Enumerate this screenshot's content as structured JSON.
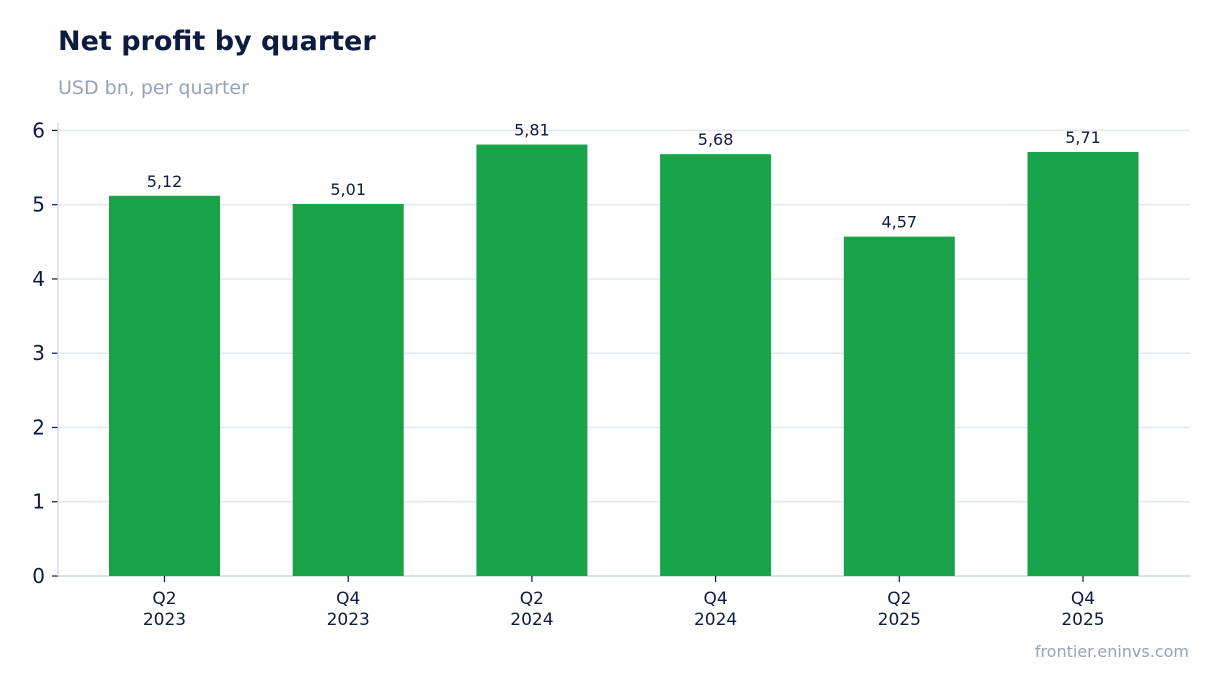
{
  "header": {
    "title": "Net profit by quarter",
    "subtitle": "USD bn, per quarter"
  },
  "footer": {
    "source": "frontier.eninvs.com"
  },
  "chart_data": {
    "type": "bar",
    "title": "Net profit by quarter",
    "subtitle": "USD bn, per quarter",
    "xlabel": "",
    "ylabel": "",
    "categories": [
      [
        "Q2",
        "2023"
      ],
      [
        "Q4",
        "2023"
      ],
      [
        "Q2",
        "2024"
      ],
      [
        "Q4",
        "2024"
      ],
      [
        "Q2",
        "2025"
      ],
      [
        "Q4",
        "2025"
      ]
    ],
    "values": [
      5.12,
      5.01,
      5.81,
      5.68,
      4.57,
      5.71
    ],
    "value_labels": [
      "5,12",
      "5,01",
      "5,81",
      "5,68",
      "4,57",
      "5,71"
    ],
    "yticks": [
      0,
      1,
      2,
      3,
      4,
      5,
      6
    ],
    "ylim": [
      0,
      6.1
    ],
    "grid": true,
    "legend": "none",
    "colors": {
      "bar": "#18a34a",
      "grid": "#e2e8f0",
      "axis": "#cbd5e1",
      "text": "#0d1b3e"
    }
  }
}
